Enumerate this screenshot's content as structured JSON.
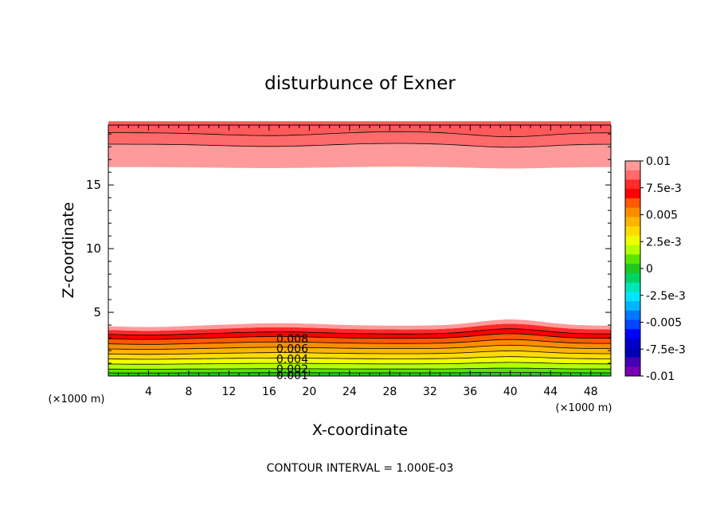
{
  "chart_data": {
    "type": "contour",
    "title": "disturbunce of Exner",
    "xlabel": "X-coordinate",
    "ylabel": "Z-coordinate",
    "x_unit": "(×1000 m)",
    "x_ticks": [
      4,
      8,
      12,
      16,
      20,
      24,
      28,
      32,
      36,
      40,
      44,
      48
    ],
    "y_ticks": [
      5,
      10,
      15
    ],
    "xlim": [
      0,
      50
    ],
    "ylim": [
      0,
      19.7
    ],
    "footer": "CONTOUR INTERVAL = 1.000E-03",
    "contour_interval": 0.001,
    "colorbar": {
      "labels": [
        "0.01",
        "7.5e-3",
        "0.005",
        "2.5e-3",
        "0",
        "-2.5e-3",
        "-0.005",
        "-7.5e-3",
        "-0.01"
      ],
      "colors": [
        "#ff9a9a",
        "#ff6a6a",
        "#ff2a2a",
        "#ff0000",
        "#ff5a00",
        "#ff8c00",
        "#ffb400",
        "#ffdc00",
        "#f0ff00",
        "#b4ff00",
        "#5ae600",
        "#1ec81e",
        "#00d264",
        "#00e6b4",
        "#00e6ff",
        "#00b4ff",
        "#0078ff",
        "#0046ff",
        "#0000ff",
        "#0000cc",
        "#0000b4",
        "#4600b4",
        "#7800b4"
      ]
    },
    "line_labels": [
      "0.008",
      "0.006",
      "0.004",
      "0.002",
      "0.001"
    ],
    "bottom_layer_contours": [
      {
        "z_mean": 0.25,
        "value": 0.001,
        "color": "#5ae600"
      },
      {
        "z_mean": 0.55,
        "value": 0.002,
        "color": "#b4ff00"
      },
      {
        "z_mean": 0.95,
        "value": 0.003,
        "color": "#f0ff00"
      },
      {
        "z_mean": 1.35,
        "value": 0.004,
        "color": "#ffdc00"
      },
      {
        "z_mean": 1.75,
        "value": 0.005,
        "color": "#ffb400"
      },
      {
        "z_mean": 2.15,
        "value": 0.006,
        "color": "#ff8c00"
      },
      {
        "z_mean": 2.55,
        "value": 0.007,
        "color": "#ff5a00"
      },
      {
        "z_mean": 2.95,
        "value": 0.008,
        "color": "#ff0000"
      },
      {
        "z_mean": 3.3,
        "value": 0.009,
        "color": "#ff2a2a"
      },
      {
        "z_mean": 3.65,
        "value": 0.0095,
        "color": "#ff9a9a"
      }
    ],
    "top_layer_contours": [
      {
        "z_mean": 16.4,
        "value": 0.0095,
        "color": "#ff9a9a"
      },
      {
        "z_mean": 18.2,
        "value": 0.009,
        "color": "#ff6a6a"
      },
      {
        "z_mean": 19.1,
        "value": 0.01,
        "color": "#ff5a5a"
      }
    ]
  }
}
